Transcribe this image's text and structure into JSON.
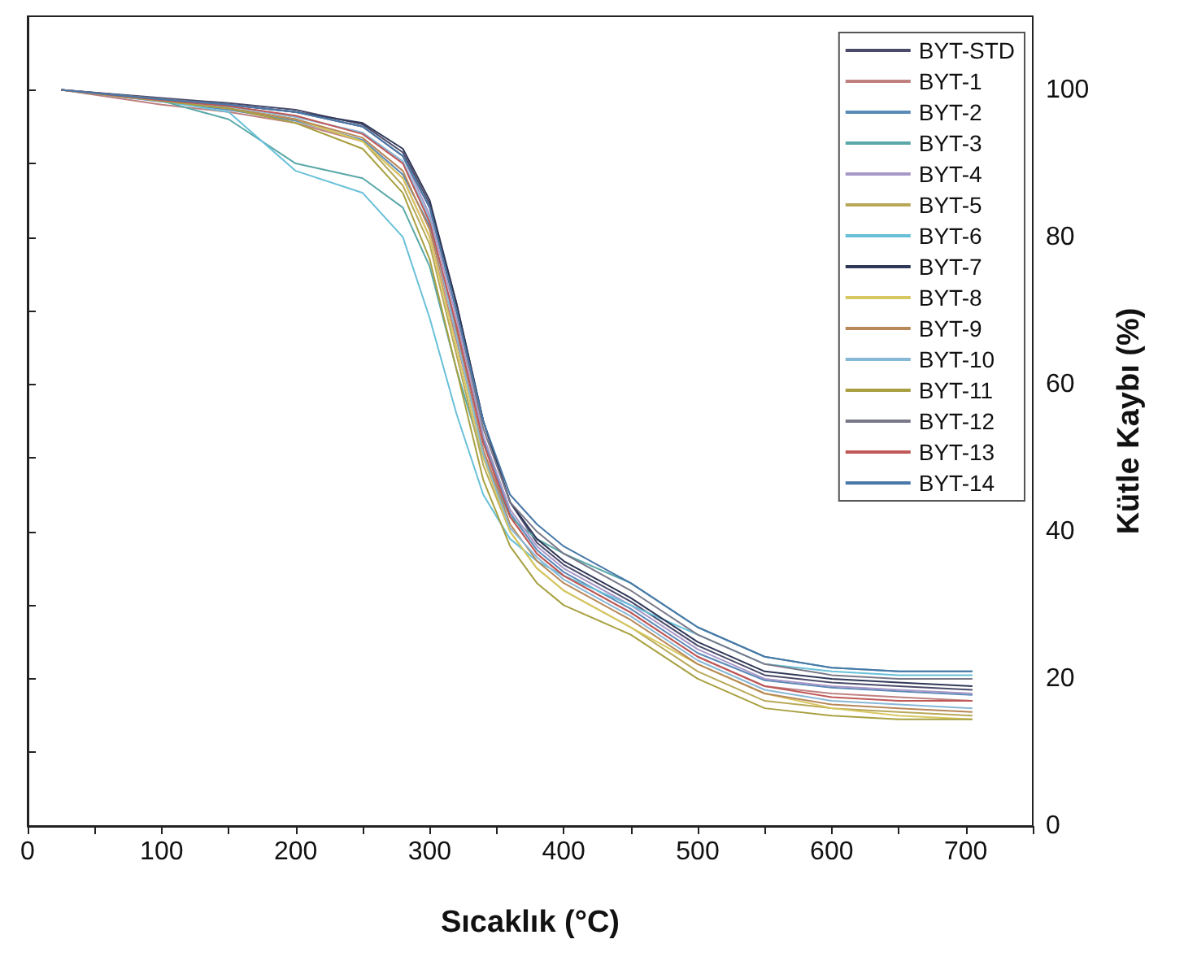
{
  "chart_data": {
    "type": "line",
    "xlabel": "Sıcaklık (°C)",
    "ylabel": "Kütle Kaybı (%)",
    "xlim": [
      0,
      750
    ],
    "xticks": [
      0,
      {
        "value": 50,
        "label": null
      },
      100,
      {
        "value": 150,
        "label": null
      },
      200,
      {
        "value": 250,
        "label": null
      },
      300,
      {
        "value": 350,
        "label": null
      },
      400,
      {
        "value": 450,
        "label": null
      },
      500,
      {
        "value": 550,
        "label": null
      },
      600,
      {
        "value": 650,
        "label": null
      },
      700,
      {
        "value": 750,
        "label": null
      }
    ],
    "ylim": [
      0,
      110
    ],
    "yticks": [
      0,
      {
        "value": 10,
        "label": null
      },
      20,
      {
        "value": 30,
        "label": null
      },
      40,
      {
        "value": 50,
        "label": null
      },
      60,
      {
        "value": 70,
        "label": null
      },
      80,
      {
        "value": 90,
        "label": null
      },
      100
    ],
    "grid": false,
    "legend": "top right",
    "marker": "none",
    "line_style": "solid",
    "x": [
      25,
      100,
      150,
      200,
      250,
      280,
      300,
      320,
      340,
      360,
      380,
      400,
      450,
      500,
      550,
      600,
      650,
      705
    ],
    "series": [
      {
        "name": "BYT-STD",
        "color": "#4a4a6a",
        "values": [
          100,
          98.9,
          98.2,
          97.3,
          95.3,
          91.5,
          84.5,
          71,
          55,
          44,
          38.5,
          35.5,
          30.5,
          24.5,
          20.5,
          19.5,
          19,
          18.5
        ]
      },
      {
        "name": "BYT-1",
        "color": "#c08080",
        "values": [
          100,
          98,
          97,
          95.5,
          93,
          88,
          80,
          66,
          51,
          42,
          37,
          34,
          29,
          23,
          19,
          18,
          17.5,
          17
        ]
      },
      {
        "name": "BYT-2",
        "color": "#5a8ab8",
        "values": [
          100,
          98.4,
          97.3,
          95.8,
          93.2,
          88.5,
          81.5,
          67.5,
          52.5,
          42.5,
          37.5,
          34.5,
          29.5,
          23.5,
          19.8,
          18.8,
          18.3,
          17.8
        ]
      },
      {
        "name": "BYT-3",
        "color": "#5aa8a8",
        "values": [
          100,
          98.5,
          96,
          90,
          88,
          84,
          76,
          62,
          50,
          42,
          39,
          37,
          33,
          27,
          23,
          21.5,
          21,
          21
        ]
      },
      {
        "name": "BYT-4",
        "color": "#a898c8",
        "values": [
          100,
          98.7,
          98,
          97,
          95,
          91,
          83,
          69,
          53,
          43,
          38,
          35,
          30,
          24,
          20,
          19,
          18.5,
          18
        ]
      },
      {
        "name": "BYT-5",
        "color": "#b8a858",
        "values": [
          100,
          98.5,
          97.5,
          96,
          93,
          87,
          79,
          64,
          49,
          40,
          35,
          32,
          27,
          21,
          17,
          16,
          15.5,
          15
        ]
      },
      {
        "name": "BYT-6",
        "color": "#68c0d8",
        "values": [
          100,
          98.5,
          97,
          89,
          86,
          80,
          69,
          56,
          45,
          39,
          36,
          34,
          30,
          26,
          22,
          21,
          20.5,
          20.5
        ]
      },
      {
        "name": "BYT-7",
        "color": "#303858",
        "values": [
          100,
          98.8,
          98,
          97,
          95.5,
          92,
          85,
          71,
          55,
          44,
          39,
          36,
          31,
          25,
          21,
          20,
          19.5,
          19
        ]
      },
      {
        "name": "BYT-8",
        "color": "#d8c860",
        "values": [
          100,
          98.5,
          97.5,
          96,
          93,
          88,
          80,
          65,
          50,
          40,
          35,
          32,
          27,
          22,
          18,
          16,
          15,
          14.5
        ]
      },
      {
        "name": "BYT-9",
        "color": "#b88858",
        "values": [
          100,
          98.5,
          97.5,
          96,
          93.5,
          89,
          81,
          67,
          51,
          41,
          36,
          33,
          28,
          22,
          18,
          16.5,
          16,
          15.5
        ]
      },
      {
        "name": "BYT-10",
        "color": "#88b8d8",
        "values": [
          100,
          98.6,
          97.7,
          96.3,
          94.2,
          90.3,
          82.5,
          66.5,
          50.5,
          40.5,
          36.5,
          33.5,
          28.5,
          22.5,
          18.5,
          17,
          16.5,
          16
        ]
      },
      {
        "name": "BYT-11",
        "color": "#a8a040",
        "values": [
          100,
          98.5,
          97.5,
          95.5,
          92,
          86,
          77,
          62,
          47,
          38,
          33,
          30,
          26,
          20,
          16,
          15,
          14.5,
          14.5
        ]
      },
      {
        "name": "BYT-12",
        "color": "#787888",
        "values": [
          100,
          98.8,
          98,
          97,
          95,
          91,
          84,
          70,
          54,
          44,
          40,
          37,
          32,
          26,
          22,
          20.5,
          20,
          20
        ]
      },
      {
        "name": "BYT-13",
        "color": "#c05858",
        "values": [
          100,
          98.6,
          97.8,
          96.5,
          94,
          90,
          82,
          68,
          52,
          42,
          37,
          34,
          29,
          23,
          19,
          17.5,
          17,
          17
        ]
      },
      {
        "name": "BYT-14",
        "color": "#4878a8",
        "values": [
          100,
          98.7,
          98,
          97,
          95,
          91,
          84,
          70,
          55,
          45,
          41,
          38,
          33,
          27,
          23,
          21.5,
          21,
          21
        ]
      }
    ]
  }
}
